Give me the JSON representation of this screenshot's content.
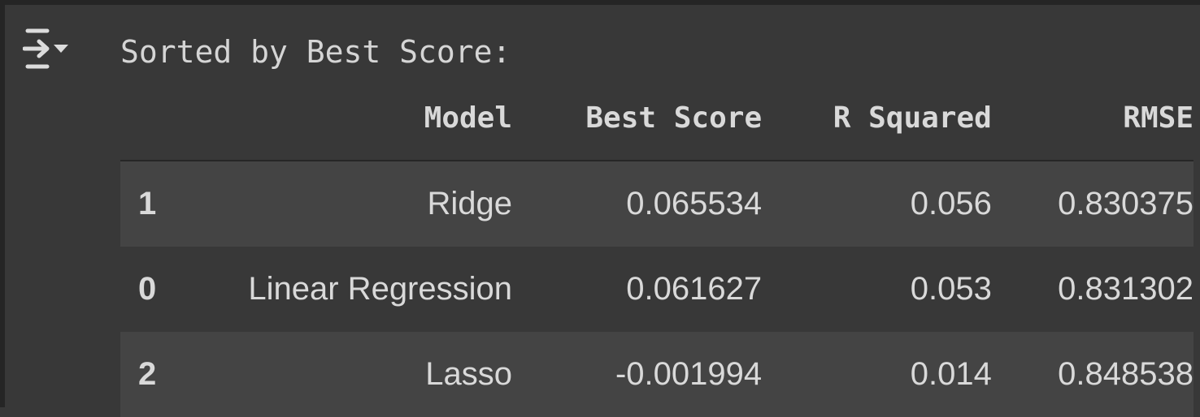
{
  "output": {
    "heading": "Sorted by Best Score:",
    "toggle_icon": "output-collapse-icon"
  },
  "table": {
    "columns": [
      "",
      "Model",
      "Best Score",
      "R Squared",
      "RMSE"
    ],
    "rows": [
      {
        "index": "1",
        "model": "Ridge",
        "best_score": "0.065534",
        "r_squared": "0.056",
        "rmse": "0.830375"
      },
      {
        "index": "0",
        "model": "Linear Regression",
        "best_score": "0.061627",
        "r_squared": "0.053",
        "rmse": "0.831302"
      },
      {
        "index": "2",
        "model": "Lasso",
        "best_score": "-0.001994",
        "r_squared": "0.014",
        "rmse": "0.848538"
      }
    ]
  },
  "colors": {
    "background": "#383838",
    "row_stripe": "#444444",
    "text": "#d9d9d9"
  }
}
